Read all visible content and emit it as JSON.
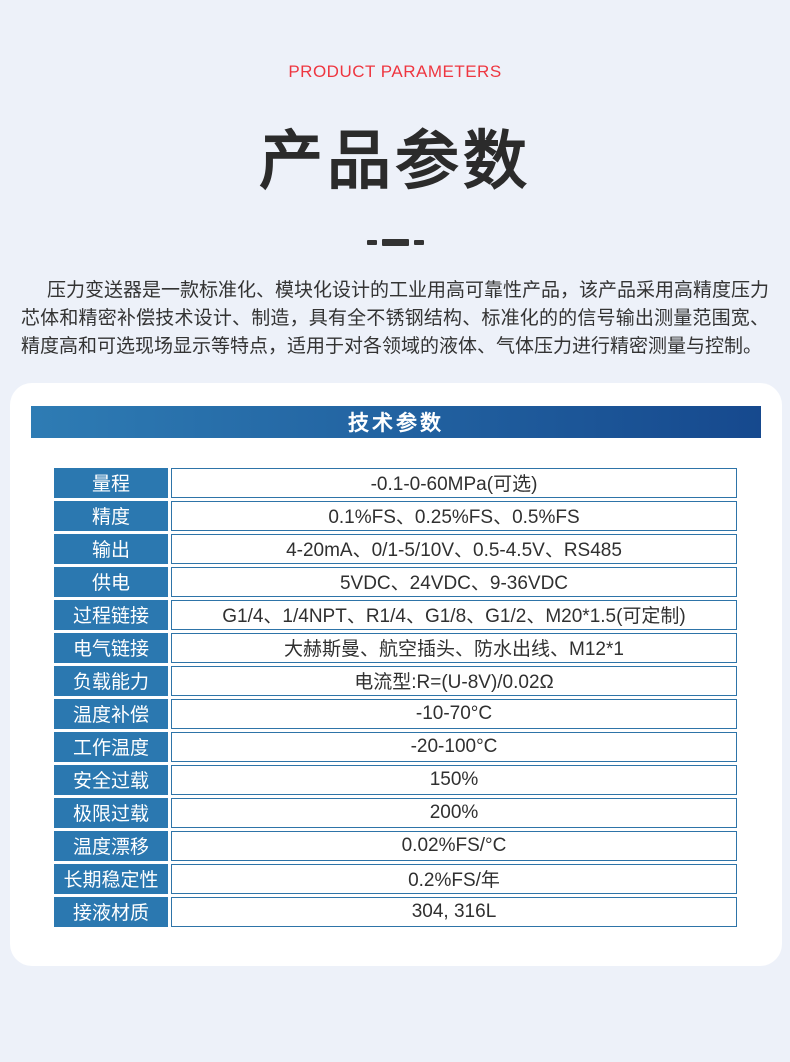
{
  "page": {
    "eyebrow": "PRODUCT PARAMETERS",
    "title": "产品参数",
    "description": "压力变送器是一款标准化、模块化设计的工业用高可靠性产品，该产品采用高精度压力芯体和精密补偿技术设计、制造，具有全不锈钢结构、标准化的的信号输出测量范围宽、精度高和可选现场显示等特点，适用于对各领域的液体、气体压力进行精密测量与控制。"
  },
  "colors": {
    "page_bg": "#edf1f9",
    "accent_red": "#ee3640",
    "bar_gradient_start": "#2e7cb4",
    "bar_gradient_end": "#16498e",
    "label_cell_blue": "#2b78b0",
    "table_border_blue": "#2e74a8"
  },
  "tech_section": {
    "header": "技术参数",
    "rows": [
      {
        "label": "量程",
        "value": "-0.1-0-60MPa(可选)"
      },
      {
        "label": "精度",
        "value": "0.1%FS、0.25%FS、0.5%FS"
      },
      {
        "label": "输出",
        "value": "4-20mA、0/1-5/10V、0.5-4.5V、RS485"
      },
      {
        "label": "供电",
        "value": "5VDC、24VDC、9-36VDC"
      },
      {
        "label": "过程链接",
        "value": "G1/4、1/4NPT、R1/4、G1/8、G1/2、M20*1.5(可定制)"
      },
      {
        "label": "电气链接",
        "value": "大赫斯曼、航空插头、防水出线、M12*1"
      },
      {
        "label": "负载能力",
        "value": "电流型:R=(U-8V)/0.02Ω"
      },
      {
        "label": "温度补偿",
        "value": "-10-70°C"
      },
      {
        "label": "工作温度",
        "value": "-20-100°C"
      },
      {
        "label": "安全过载",
        "value": "150%"
      },
      {
        "label": "极限过载",
        "value": "200%"
      },
      {
        "label": "温度漂移",
        "value": "0.02%FS/°C"
      },
      {
        "label": "长期稳定性",
        "value": "0.2%FS/年"
      },
      {
        "label": "接液材质",
        "value": "304, 316L"
      }
    ]
  }
}
